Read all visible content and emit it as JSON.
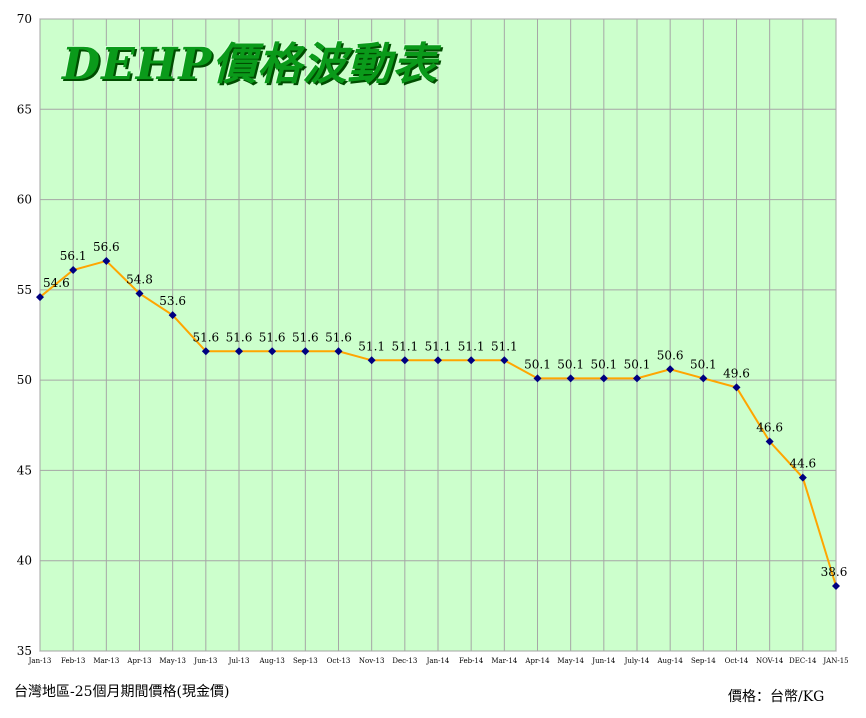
{
  "chart_data": {
    "type": "line",
    "title": "DEHP價格波動表",
    "caption": "台灣地區-25個月期間價格(現金價)",
    "unit_note": "價格：台幣/KG",
    "categories": [
      "Jan-13",
      "Feb-13",
      "Mar-13",
      "Apr-13",
      "May-13",
      "Jun-13",
      "Jul-13",
      "Aug-13",
      "Sep-13",
      "Oct-13",
      "Nov-13",
      "Dec-13",
      "Jan-14",
      "Feb-14",
      "Mar-14",
      "Apr-14",
      "May-14",
      "Jun-14",
      "July-14",
      "Aug-14",
      "Sep-14",
      "Oct-14",
      "NOV-14",
      "DEC-14",
      "JAN-15"
    ],
    "values": [
      54.6,
      56.1,
      56.6,
      54.8,
      53.6,
      51.6,
      51.6,
      51.6,
      51.6,
      51.6,
      51.1,
      51.1,
      51.1,
      51.1,
      51.1,
      50.1,
      50.1,
      50.1,
      50.1,
      50.6,
      50.1,
      49.6,
      46.6,
      44.6,
      38.6
    ],
    "y_ticks": [
      "35",
      "40",
      "45",
      "50",
      "55",
      "60",
      "65",
      "70"
    ],
    "ylim": [
      35,
      70
    ],
    "grid": true,
    "colors": {
      "plot_bg": "#ccffcc",
      "line": "#ffa500",
      "marker": "#000080",
      "grid": "#a6a6a6"
    }
  }
}
